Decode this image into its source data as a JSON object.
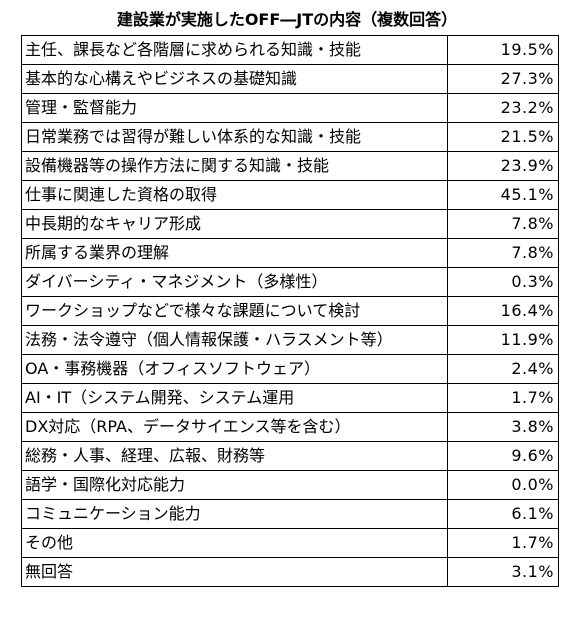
{
  "title": "建設業が実施したOFF―JTの内容（複数回答）",
  "chart_data": {
    "type": "table",
    "title": "建設業が実施したOFF―JTの内容（複数回答）",
    "columns": [
      "",
      ""
    ],
    "rows": [
      {
        "label": "主任、課長など各階層に求められる知識・技能",
        "value": 19.5,
        "display": "19.5%"
      },
      {
        "label": "基本的な心構えやビジネスの基礎知識",
        "value": 27.3,
        "display": "27.3%"
      },
      {
        "label": "管理・監督能力",
        "value": 23.2,
        "display": "23.2%"
      },
      {
        "label": "日常業務では習得が難しい体系的な知識・技能",
        "value": 21.5,
        "display": "21.5%"
      },
      {
        "label": "設備機器等の操作方法に関する知識・技能",
        "value": 23.9,
        "display": "23.9%"
      },
      {
        "label": "仕事に関連した資格の取得",
        "value": 45.1,
        "display": "45.1%"
      },
      {
        "label": "中長期的なキャリア形成",
        "value": 7.8,
        "display": "7.8%"
      },
      {
        "label": "所属する業界の理解",
        "value": 7.8,
        "display": "7.8%"
      },
      {
        "label": "ダイバーシティ・マネジメント（多様性）",
        "value": 0.3,
        "display": "0.3%"
      },
      {
        "label": "ワークショップなどで様々な課題について検討",
        "value": 16.4,
        "display": "16.4%"
      },
      {
        "label": "法務・法令遵守（個人情報保護・ハラスメント等）",
        "value": 11.9,
        "display": "11.9%"
      },
      {
        "label": "OA・事務機器（オフィスソフトウェア）",
        "value": 2.4,
        "display": "2.4%"
      },
      {
        "label": "AI・IT（システム開発、システム運用",
        "value": 1.7,
        "display": "1.7%"
      },
      {
        "label": "DX対応（RPA、データサイエンス等を含む）",
        "value": 3.8,
        "display": "3.8%"
      },
      {
        "label": "総務・人事、経理、広報、財務等",
        "value": 9.6,
        "display": "9.6%"
      },
      {
        "label": "語学・国際化対応能力",
        "value": 0.0,
        "display": "0.0%"
      },
      {
        "label": "コミュニケーション能力",
        "value": 6.1,
        "display": "6.1%"
      },
      {
        "label": "その他",
        "value": 1.7,
        "display": "1.7%"
      },
      {
        "label": "無回答",
        "value": 3.1,
        "display": "3.1%"
      }
    ]
  }
}
